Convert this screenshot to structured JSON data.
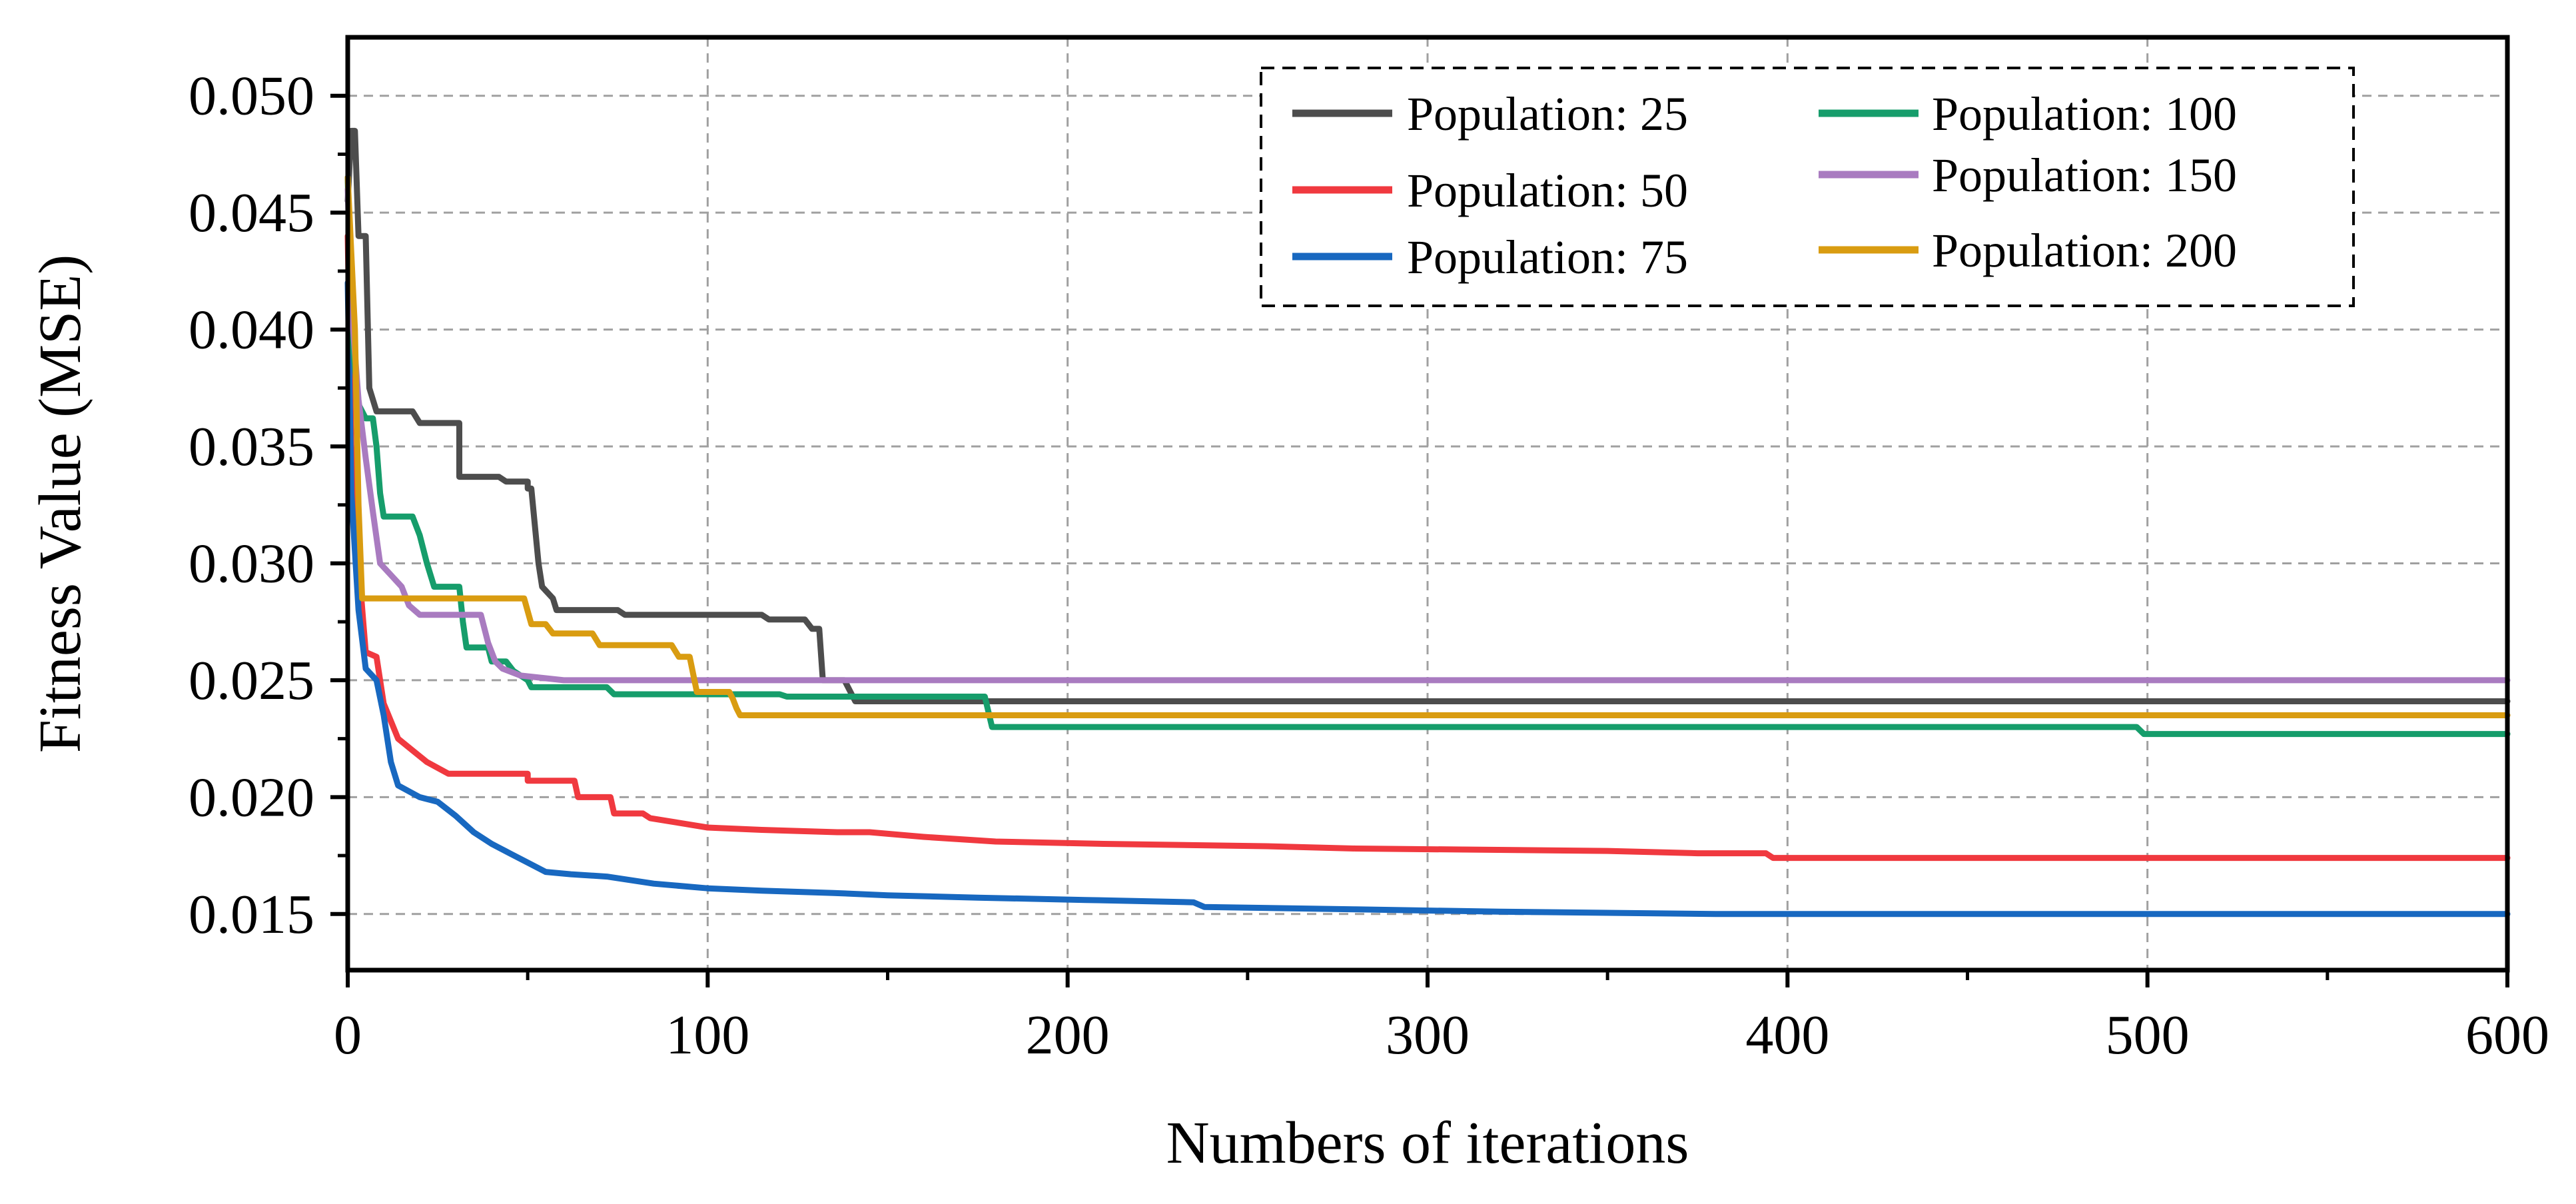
{
  "chart_data": {
    "type": "line",
    "title": "",
    "xlabel": "Numbers of iterations",
    "ylabel": "Fitness Value (MSE)",
    "xlim": [
      0,
      600
    ],
    "ylim": [
      0.0126,
      0.0525
    ],
    "x_ticks": [
      0,
      100,
      200,
      300,
      400,
      500,
      600
    ],
    "x_tick_labels": [
      "0",
      "100",
      "200",
      "300",
      "400",
      "500",
      "600"
    ],
    "y_ticks": [
      0.015,
      0.02,
      0.025,
      0.03,
      0.035,
      0.04,
      0.045,
      0.05
    ],
    "y_tick_labels": [
      "0.015",
      "0.020",
      "0.025",
      "0.030",
      "0.035",
      "0.040",
      "0.045",
      "0.050"
    ],
    "grid": true,
    "legend_position": "top-right",
    "series": [
      {
        "name": "Population: 25",
        "label": "Population: 25",
        "color": "#4d4d4d",
        "points": [
          [
            0,
            0.0455
          ],
          [
            1,
            0.0485
          ],
          [
            2,
            0.0485
          ],
          [
            3,
            0.044
          ],
          [
            5,
            0.044
          ],
          [
            6,
            0.0375
          ],
          [
            8,
            0.0365
          ],
          [
            18,
            0.0365
          ],
          [
            20,
            0.036
          ],
          [
            31,
            0.036
          ],
          [
            31,
            0.0337
          ],
          [
            42,
            0.0337
          ],
          [
            44,
            0.0335
          ],
          [
            50,
            0.0335
          ],
          [
            50,
            0.0332
          ],
          [
            51,
            0.0332
          ],
          [
            53,
            0.03
          ],
          [
            54,
            0.029
          ],
          [
            57,
            0.0285
          ],
          [
            58,
            0.028
          ],
          [
            75,
            0.028
          ],
          [
            77,
            0.0278
          ],
          [
            115,
            0.0278
          ],
          [
            117,
            0.0276
          ],
          [
            127,
            0.0276
          ],
          [
            129,
            0.0272
          ],
          [
            131,
            0.0272
          ],
          [
            132,
            0.025
          ],
          [
            138,
            0.025
          ],
          [
            140,
            0.0244
          ],
          [
            141,
            0.0241
          ],
          [
            600,
            0.0241
          ]
        ]
      },
      {
        "name": "Population: 50",
        "label": "Population: 50",
        "color": "#f0393f",
        "points": [
          [
            0,
            0.044
          ],
          [
            1,
            0.035
          ],
          [
            3,
            0.03
          ],
          [
            5,
            0.0262
          ],
          [
            8,
            0.026
          ],
          [
            10,
            0.024
          ],
          [
            14,
            0.0225
          ],
          [
            18,
            0.022
          ],
          [
            22,
            0.0215
          ],
          [
            28,
            0.021
          ],
          [
            50,
            0.021
          ],
          [
            50,
            0.0207
          ],
          [
            63,
            0.0207
          ],
          [
            64,
            0.02
          ],
          [
            73,
            0.02
          ],
          [
            74,
            0.0193
          ],
          [
            82,
            0.0193
          ],
          [
            84,
            0.0191
          ],
          [
            92,
            0.0189
          ],
          [
            100,
            0.0187
          ],
          [
            115,
            0.0186
          ],
          [
            136,
            0.0185
          ],
          [
            145,
            0.0185
          ],
          [
            160,
            0.0183
          ],
          [
            180,
            0.0181
          ],
          [
            210,
            0.018
          ],
          [
            255,
            0.0179
          ],
          [
            280,
            0.0178
          ],
          [
            350,
            0.0177
          ],
          [
            375,
            0.0176
          ],
          [
            394,
            0.0176
          ],
          [
            396,
            0.0174
          ],
          [
            600,
            0.0174
          ]
        ]
      },
      {
        "name": "Population: 75",
        "label": "Population: 75",
        "color": "#1868c0",
        "points": [
          [
            0,
            0.042
          ],
          [
            1,
            0.033
          ],
          [
            3,
            0.028
          ],
          [
            5,
            0.0255
          ],
          [
            8,
            0.025
          ],
          [
            10,
            0.0235
          ],
          [
            12,
            0.0215
          ],
          [
            14,
            0.0205
          ],
          [
            20,
            0.02
          ],
          [
            25,
            0.0198
          ],
          [
            30,
            0.0192
          ],
          [
            35,
            0.0185
          ],
          [
            40,
            0.018
          ],
          [
            45,
            0.0176
          ],
          [
            50,
            0.0172
          ],
          [
            55,
            0.0168
          ],
          [
            62,
            0.0167
          ],
          [
            72,
            0.0166
          ],
          [
            85,
            0.0163
          ],
          [
            100,
            0.0161
          ],
          [
            115,
            0.016
          ],
          [
            135,
            0.0159
          ],
          [
            150,
            0.0158
          ],
          [
            175,
            0.0157
          ],
          [
            205,
            0.0156
          ],
          [
            235,
            0.0155
          ],
          [
            238,
            0.0153
          ],
          [
            280,
            0.0152
          ],
          [
            320,
            0.0151
          ],
          [
            380,
            0.015
          ],
          [
            600,
            0.015
          ]
        ]
      },
      {
        "name": "Population: 100",
        "label": "Population: 100",
        "color": "#169d6b",
        "points": [
          [
            0,
            0.0465
          ],
          [
            1,
            0.04
          ],
          [
            3,
            0.0368
          ],
          [
            5,
            0.0362
          ],
          [
            7,
            0.0362
          ],
          [
            8,
            0.035
          ],
          [
            9,
            0.033
          ],
          [
            10,
            0.032
          ],
          [
            18,
            0.032
          ],
          [
            20,
            0.0312
          ],
          [
            22,
            0.03
          ],
          [
            24,
            0.029
          ],
          [
            31,
            0.029
          ],
          [
            32,
            0.0275
          ],
          [
            33,
            0.0264
          ],
          [
            39,
            0.0264
          ],
          [
            40,
            0.0258
          ],
          [
            44,
            0.0258
          ],
          [
            46,
            0.0254
          ],
          [
            50,
            0.025
          ],
          [
            51,
            0.0247
          ],
          [
            72,
            0.0247
          ],
          [
            74,
            0.0244
          ],
          [
            120,
            0.0244
          ],
          [
            122,
            0.0243
          ],
          [
            177,
            0.0243
          ],
          [
            179,
            0.023
          ],
          [
            497,
            0.023
          ],
          [
            499,
            0.0227
          ],
          [
            600,
            0.0227
          ]
        ]
      },
      {
        "name": "Population: 150",
        "label": "Population: 150",
        "color": "#a97bc0",
        "points": [
          [
            0,
            0.046
          ],
          [
            1,
            0.041
          ],
          [
            3,
            0.037
          ],
          [
            5,
            0.0345
          ],
          [
            7,
            0.0322
          ],
          [
            9,
            0.03
          ],
          [
            12,
            0.0295
          ],
          [
            15,
            0.029
          ],
          [
            17,
            0.0282
          ],
          [
            20,
            0.0278
          ],
          [
            37,
            0.0278
          ],
          [
            39,
            0.0266
          ],
          [
            41,
            0.0258
          ],
          [
            43,
            0.0255
          ],
          [
            48,
            0.0252
          ],
          [
            60,
            0.025
          ],
          [
            600,
            0.025
          ]
        ]
      },
      {
        "name": "Population: 200",
        "label": "Population: 200",
        "color": "#d99c11",
        "points": [
          [
            0,
            0.0465
          ],
          [
            2,
            0.04
          ],
          [
            3,
            0.0325
          ],
          [
            4,
            0.0285
          ],
          [
            49,
            0.0285
          ],
          [
            51,
            0.0274
          ],
          [
            55,
            0.0274
          ],
          [
            57,
            0.027
          ],
          [
            68,
            0.027
          ],
          [
            70,
            0.0265
          ],
          [
            90,
            0.0265
          ],
          [
            92,
            0.026
          ],
          [
            95,
            0.026
          ],
          [
            97,
            0.0245
          ],
          [
            106,
            0.0245
          ],
          [
            107,
            0.0242
          ],
          [
            108,
            0.0238
          ],
          [
            109,
            0.0235
          ],
          [
            600,
            0.0235
          ]
        ]
      }
    ]
  }
}
